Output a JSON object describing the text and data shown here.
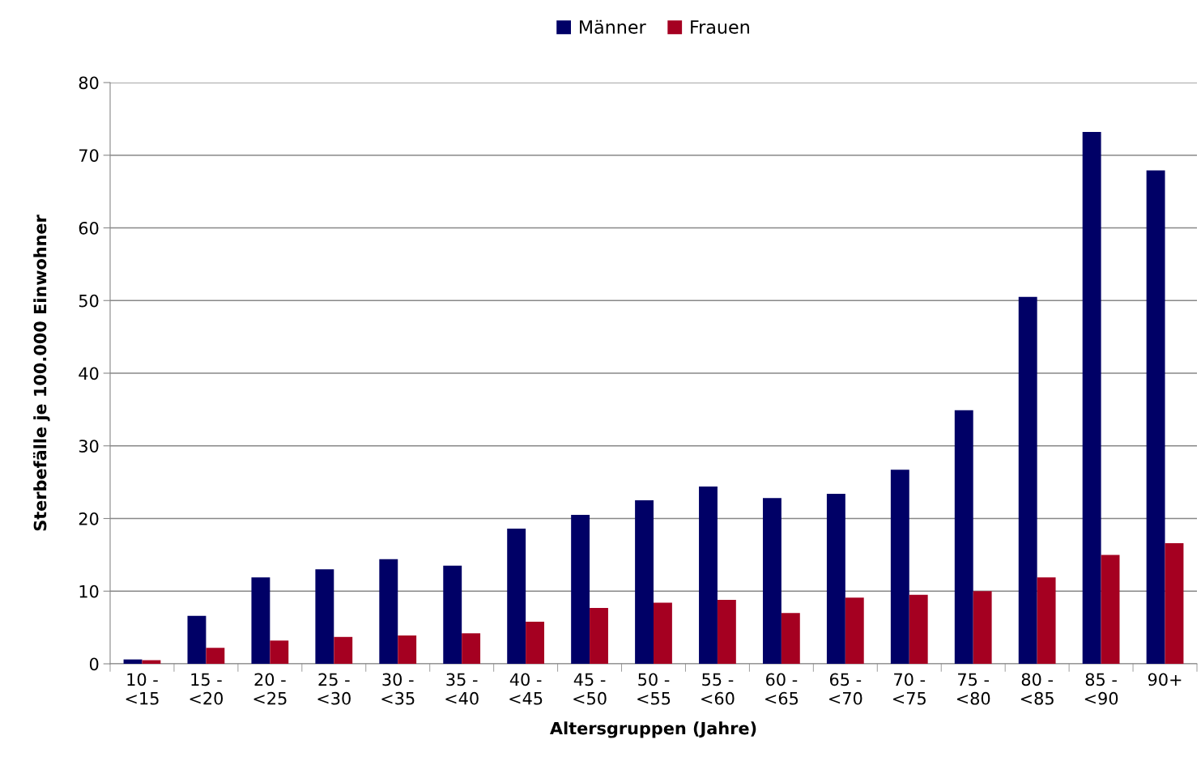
{
  "chart_data": {
    "type": "bar",
    "xlabel": "Altersgruppen (Jahre)",
    "ylabel": "Sterbefälle je 100.000 Einwohner",
    "categories": [
      "10 -\n<15",
      "15 -\n<20",
      "20 -\n<25",
      "25 -\n<30",
      "30 -\n<35",
      "35 -\n<40",
      "40 -\n<45",
      "45 -\n<50",
      "50 -\n<55",
      "55 -\n<60",
      "60 -\n<65",
      "65 -\n<70",
      "70 -\n<75",
      "75 -\n<80",
      "80 -\n<85",
      "85 -\n<90",
      "90+"
    ],
    "series": [
      {
        "name": "Männer",
        "color": "#000066",
        "values": [
          0.6,
          6.6,
          11.9,
          13.0,
          14.4,
          13.5,
          18.6,
          20.5,
          22.5,
          24.4,
          22.8,
          23.4,
          26.7,
          34.9,
          50.5,
          73.2,
          67.9
        ]
      },
      {
        "name": "Frauen",
        "color": "#a50021",
        "values": [
          0.5,
          2.2,
          3.2,
          3.7,
          3.9,
          4.2,
          5.8,
          7.7,
          8.4,
          8.8,
          7.0,
          9.1,
          9.5,
          10.0,
          11.9,
          15.0,
          16.6
        ]
      }
    ],
    "ylim": [
      0,
      80
    ],
    "yticks": [
      0,
      10,
      20,
      30,
      40,
      50,
      60,
      70,
      80
    ],
    "grid": "y",
    "legend": "top"
  }
}
